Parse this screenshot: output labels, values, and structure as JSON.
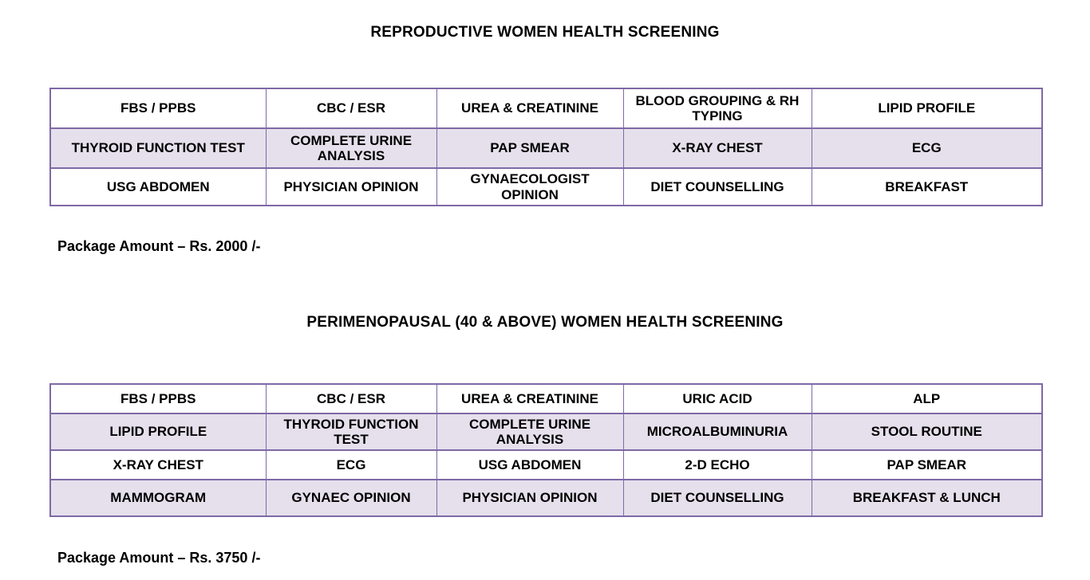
{
  "colors": {
    "table_border": "#7E69A6",
    "row_shaded_fill": "#E5E0EC",
    "row_plain_fill": "#FFFFFF",
    "text": "#000000",
    "page_background": "#FFFFFF"
  },
  "sections": [
    {
      "title": "REPRODUCTIVE WOMEN HEALTH SCREENING",
      "package_label": "Package Amount – Rs. 2000 /-",
      "table": {
        "rows": [
          {
            "shaded": false,
            "cells": [
              "FBS / PPBS",
              "CBC / ESR",
              "UREA & CREATININE",
              "BLOOD GROUPING & RH TYPING",
              "LIPID PROFILE"
            ]
          },
          {
            "shaded": true,
            "cells": [
              "THYROID FUNCTION TEST",
              "COMPLETE URINE ANALYSIS",
              "PAP SMEAR",
              "X-RAY CHEST",
              "ECG"
            ]
          },
          {
            "shaded": false,
            "cells": [
              "USG ABDOMEN",
              "PHYSICIAN OPINION",
              "GYNAECOLOGIST OPINION",
              "DIET COUNSELLING",
              "BREAKFAST"
            ]
          }
        ]
      }
    },
    {
      "title": "PERIMENOPAUSAL (40 & ABOVE) WOMEN HEALTH SCREENING",
      "package_label": "Package Amount – Rs. 3750 /-",
      "table": {
        "rows": [
          {
            "shaded": false,
            "cells": [
              "FBS / PPBS",
              "CBC / ESR",
              "UREA & CREATININE",
              "URIC ACID",
              "ALP"
            ]
          },
          {
            "shaded": true,
            "cells": [
              "LIPID PROFILE",
              "THYROID FUNCTION TEST",
              "COMPLETE URINE ANALYSIS",
              "MICROALBUMINURIA",
              "STOOL ROUTINE"
            ]
          },
          {
            "shaded": false,
            "cells": [
              "X-RAY CHEST",
              "ECG",
              "USG ABDOMEN",
              "2-D ECHO",
              "PAP SMEAR"
            ]
          },
          {
            "shaded": true,
            "cells": [
              "MAMMOGRAM",
              "GYNAEC OPINION",
              "PHYSICIAN OPINION",
              "DIET COUNSELLING",
              "BREAKFAST & LUNCH"
            ]
          }
        ]
      }
    }
  ]
}
